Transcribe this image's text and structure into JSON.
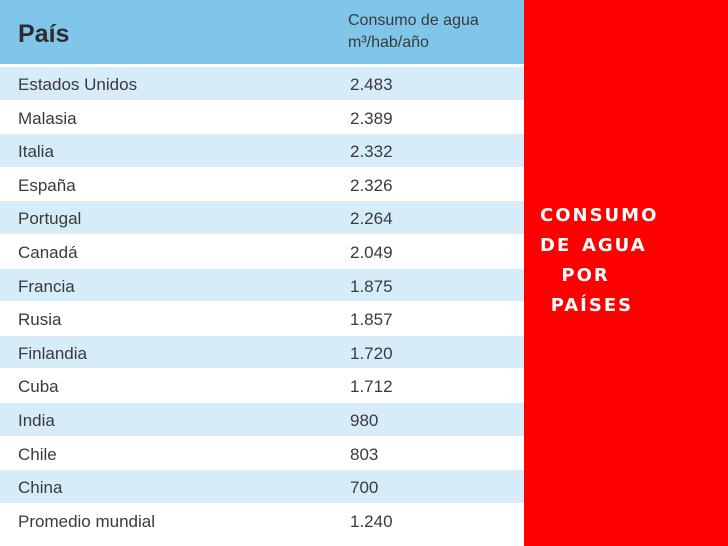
{
  "table": {
    "header": {
      "country_label": "País",
      "value_label_line1": "Consumo de agua",
      "value_label_line2": "m³/hab/año"
    },
    "rows": [
      {
        "country": "Estados Unidos",
        "value": "2.483"
      },
      {
        "country": "Malasia",
        "value": "2.389"
      },
      {
        "country": "Italia",
        "value": "2.332"
      },
      {
        "country": "España",
        "value": "2.326"
      },
      {
        "country": "Portugal",
        "value": "2.264"
      },
      {
        "country": "Canadá",
        "value": "2.049"
      },
      {
        "country": "Francia",
        "value": "1.875"
      },
      {
        "country": "Rusia",
        "value": "1.857"
      },
      {
        "country": "Finlandia",
        "value": "1.720"
      },
      {
        "country": "Cuba",
        "value": "1.712"
      },
      {
        "country": "India",
        "value": "980"
      },
      {
        "country": "Chile",
        "value": "803"
      },
      {
        "country": "China",
        "value": "700"
      },
      {
        "country": "Promedio mundial",
        "value": "1.240"
      }
    ]
  },
  "title_panel": {
    "lines": [
      "CONSUMO",
      "DE AGUA ",
      "  POR",
      " PAÍSES"
    ]
  },
  "colors": {
    "header_bg": "#7fc6ea",
    "stripe_bg": "#d6ecf8",
    "title_panel_bg": "#fe0000",
    "title_text": "#ffffff"
  }
}
